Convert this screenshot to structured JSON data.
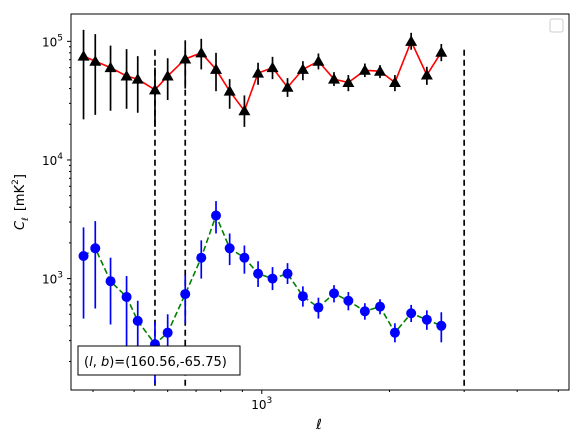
{
  "chart_data": {
    "type": "scatter",
    "xscale": "log",
    "yscale": "log",
    "xlabel": "ℓ",
    "ylabel": "C",
    "ylabel_sub": "ℓ",
    "ylabel_unit": "[mK",
    "ylabel_unit_sup": "2",
    "ylabel_unit_end": "]",
    "xlim": [
      355,
      5300
    ],
    "ylim": [
      115,
      170000
    ],
    "x_tick_labels": [
      {
        "value": 1000,
        "base": "10",
        "exp": "3"
      }
    ],
    "y_tick_labels": [
      {
        "value": 1000,
        "base": "10",
        "exp": "3"
      },
      {
        "value": 10000,
        "base": "10",
        "exp": "4"
      },
      {
        "value": 100000,
        "base": "10",
        "exp": "5"
      }
    ],
    "legend": {
      "placement": "top-right",
      "entries": []
    },
    "annotation": "(l, b)=(160.56,-65.75)",
    "annotation_prefix": "(",
    "annotation_l": "l",
    "annotation_sep": ", ",
    "annotation_b": "b",
    "annotation_suffix": ")=(160.56,-65.75)",
    "vlines": [
      560,
      660,
      3000
    ],
    "series": [
      {
        "marker": "triangle",
        "color": "#000000",
        "line_color": "#ff0000",
        "line_style": "solid",
        "err_color": "#000000",
        "points": [
          {
            "x": 380,
            "y": 75000,
            "lo": 22000,
            "hi": 125000
          },
          {
            "x": 405,
            "y": 68000,
            "lo": 24000,
            "hi": 115000
          },
          {
            "x": 440,
            "y": 60000,
            "lo": 26000,
            "hi": 92000
          },
          {
            "x": 480,
            "y": 51000,
            "lo": 27000,
            "hi": 86000
          },
          {
            "x": 510,
            "y": 48000,
            "lo": 25000,
            "hi": 75000
          },
          {
            "x": 560,
            "y": 39000,
            "lo": 19000,
            "hi": 60000
          },
          {
            "x": 600,
            "y": 51000,
            "lo": 32000,
            "hi": 72000
          },
          {
            "x": 660,
            "y": 71000,
            "lo": 40000,
            "hi": 102000
          },
          {
            "x": 720,
            "y": 80000,
            "lo": 58000,
            "hi": 105000
          },
          {
            "x": 780,
            "y": 58000,
            "lo": 38000,
            "hi": 80000
          },
          {
            "x": 840,
            "y": 38000,
            "lo": 27000,
            "hi": 48000
          },
          {
            "x": 910,
            "y": 26000,
            "lo": 19000,
            "hi": 35000
          },
          {
            "x": 980,
            "y": 54000,
            "lo": 43000,
            "hi": 66000
          },
          {
            "x": 1060,
            "y": 60000,
            "lo": 48000,
            "hi": 74000
          },
          {
            "x": 1150,
            "y": 41000,
            "lo": 34000,
            "hi": 49000
          },
          {
            "x": 1250,
            "y": 58000,
            "lo": 47000,
            "hi": 68000
          },
          {
            "x": 1360,
            "y": 68000,
            "lo": 58000,
            "hi": 79000
          },
          {
            "x": 1480,
            "y": 48000,
            "lo": 42000,
            "hi": 55000
          },
          {
            "x": 1600,
            "y": 45000,
            "lo": 38000,
            "hi": 52000
          },
          {
            "x": 1750,
            "y": 57000,
            "lo": 50000,
            "hi": 65000
          },
          {
            "x": 1900,
            "y": 56000,
            "lo": 49000,
            "hi": 63000
          },
          {
            "x": 2060,
            "y": 45000,
            "lo": 38000,
            "hi": 52000
          },
          {
            "x": 2250,
            "y": 100000,
            "lo": 85000,
            "hi": 118000
          },
          {
            "x": 2450,
            "y": 52000,
            "lo": 43000,
            "hi": 61000
          },
          {
            "x": 2650,
            "y": 81000,
            "lo": 68000,
            "hi": 95000
          }
        ]
      },
      {
        "marker": "circle",
        "color": "#0000ff",
        "line_color": "#008000",
        "line_style": "dashed",
        "err_color": "#0000ff",
        "points": [
          {
            "x": 380,
            "y": 1550,
            "lo": 460,
            "hi": 2700
          },
          {
            "x": 405,
            "y": 1800,
            "lo": 560,
            "hi": 3050
          },
          {
            "x": 440,
            "y": 950,
            "lo": 410,
            "hi": 1500
          },
          {
            "x": 480,
            "y": 700,
            "lo": 250,
            "hi": 1050
          },
          {
            "x": 510,
            "y": 440,
            "lo": 230,
            "hi": 650
          },
          {
            "x": 560,
            "y": 280,
            "lo": 130,
            "hi": 430
          },
          {
            "x": 600,
            "y": 350,
            "lo": 200,
            "hi": 500
          },
          {
            "x": 660,
            "y": 740,
            "lo": 420,
            "hi": 1070
          },
          {
            "x": 720,
            "y": 1500,
            "lo": 1000,
            "hi": 2100
          },
          {
            "x": 780,
            "y": 3400,
            "lo": 2400,
            "hi": 4500
          },
          {
            "x": 840,
            "y": 1800,
            "lo": 1300,
            "hi": 2400
          },
          {
            "x": 910,
            "y": 1500,
            "lo": 1100,
            "hi": 1900
          },
          {
            "x": 980,
            "y": 1100,
            "lo": 850,
            "hi": 1400
          },
          {
            "x": 1060,
            "y": 1000,
            "lo": 800,
            "hi": 1250
          },
          {
            "x": 1150,
            "y": 1100,
            "lo": 900,
            "hi": 1350
          },
          {
            "x": 1250,
            "y": 710,
            "lo": 580,
            "hi": 860
          },
          {
            "x": 1360,
            "y": 570,
            "lo": 460,
            "hi": 690
          },
          {
            "x": 1480,
            "y": 750,
            "lo": 630,
            "hi": 880
          },
          {
            "x": 1600,
            "y": 650,
            "lo": 540,
            "hi": 770
          },
          {
            "x": 1750,
            "y": 530,
            "lo": 450,
            "hi": 620
          },
          {
            "x": 1900,
            "y": 580,
            "lo": 500,
            "hi": 670
          },
          {
            "x": 2060,
            "y": 350,
            "lo": 290,
            "hi": 420
          },
          {
            "x": 2250,
            "y": 510,
            "lo": 430,
            "hi": 600
          },
          {
            "x": 2450,
            "y": 450,
            "lo": 370,
            "hi": 540
          },
          {
            "x": 2650,
            "y": 400,
            "lo": 290,
            "hi": 520
          }
        ]
      }
    ]
  }
}
